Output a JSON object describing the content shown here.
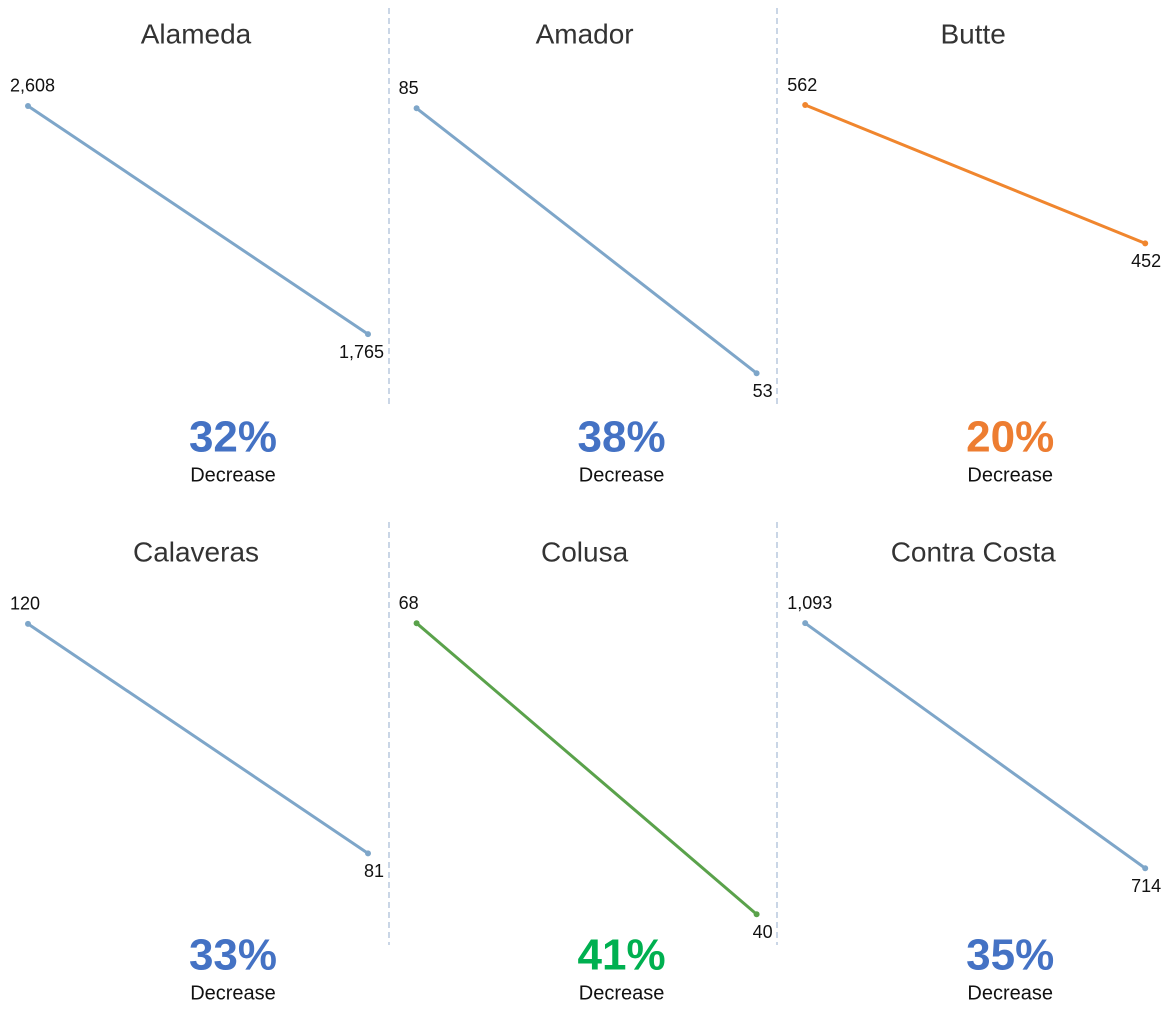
{
  "chart_data": [
    {
      "type": "line",
      "title": "Alameda",
      "categories": [
        null,
        null
      ],
      "values": [
        2608,
        1765
      ],
      "value_labels": [
        "2,608",
        "1,765"
      ],
      "ylim": [
        0,
        2630
      ],
      "color": "#7ea6c9",
      "annotations": [
        "32%",
        "Decrease"
      ],
      "annotation_color": "#4472c4"
    },
    {
      "type": "line",
      "title": "Amador",
      "categories": [
        null,
        null
      ],
      "values": [
        85,
        53
      ],
      "value_labels": [
        "85",
        "53"
      ],
      "ylim": [
        0,
        86
      ],
      "color": "#7ea6c9",
      "annotations": [
        "38%",
        "Decrease"
      ],
      "annotation_color": "#4472c4"
    },
    {
      "type": "line",
      "title": "Butte",
      "categories": [
        null,
        null
      ],
      "values": [
        562,
        452
      ],
      "value_labels": [
        "562",
        "452"
      ],
      "ylim": [
        0,
        566
      ],
      "color": "#f0862e",
      "annotations": [
        "20%",
        "Decrease"
      ],
      "annotation_color": "#ed7d31"
    },
    {
      "type": "line",
      "title": "Calaveras",
      "categories": [
        null,
        null
      ],
      "values": [
        120,
        81
      ],
      "value_labels": [
        "120",
        "81"
      ],
      "ylim": [
        0,
        121
      ],
      "color": "#7ea6c9",
      "annotations": [
        "33%",
        "Decrease"
      ],
      "annotation_color": "#4472c4"
    },
    {
      "type": "line",
      "title": "Colusa",
      "categories": [
        null,
        null
      ],
      "values": [
        68,
        40
      ],
      "value_labels": [
        "68",
        "40"
      ],
      "ylim": [
        0,
        68.5
      ],
      "color": "#5aa24b",
      "annotations": [
        "41%",
        "Decrease"
      ],
      "annotation_color": "#00b050"
    },
    {
      "type": "line",
      "title": "Contra Costa",
      "categories": [
        null,
        null
      ],
      "values": [
        1093,
        714
      ],
      "value_labels": [
        "1,093",
        "714"
      ],
      "ylim": [
        0,
        1101
      ],
      "color": "#7ea6c9",
      "annotations": [
        "35%",
        "Decrease"
      ],
      "annotation_color": "#4472c4"
    }
  ]
}
